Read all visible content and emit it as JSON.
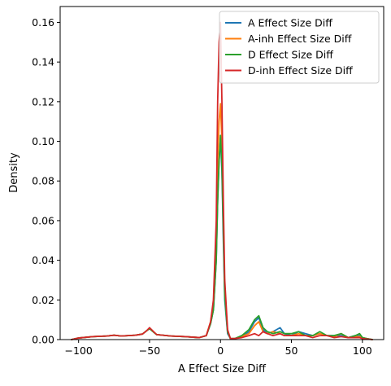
{
  "chart_data": {
    "type": "line",
    "xlabel": "A Effect Size Diff",
    "ylabel": "Density",
    "xlim": [
      -113,
      115
    ],
    "ylim": [
      0,
      0.168
    ],
    "xticks": [
      -100,
      -50,
      0,
      50,
      100
    ],
    "xtick_labels": [
      "−100",
      "−50",
      "0",
      "50",
      "100"
    ],
    "yticks": [
      0,
      0.02,
      0.04,
      0.06,
      0.08,
      0.1,
      0.12,
      0.14,
      0.16
    ],
    "ytick_labels": [
      "0.00",
      "0.02",
      "0.04",
      "0.06",
      "0.08",
      "0.10",
      "0.12",
      "0.14",
      "0.16"
    ],
    "grid": false,
    "legend_position": "top-right",
    "series": [
      {
        "name": "A Effect Size Diff",
        "color": "#1f77b4",
        "x": [
          -105,
          -100,
          -90,
          -80,
          -75,
          -70,
          -60,
          -55,
          -52,
          -50,
          -45,
          -35,
          -25,
          -15,
          -10,
          -7,
          -5,
          -3,
          -2,
          -1,
          0,
          1,
          2,
          3,
          5,
          7,
          10,
          15,
          20,
          24,
          27,
          30,
          33,
          37,
          42,
          45,
          50,
          55,
          60,
          65,
          70,
          75,
          80,
          85,
          90,
          95,
          98,
          100,
          103,
          107
        ],
        "y": [
          0,
          0.0008,
          0.0015,
          0.0018,
          0.0022,
          0.0018,
          0.0022,
          0.0028,
          0.0045,
          0.0055,
          0.0025,
          0.0018,
          0.0015,
          0.001,
          0.002,
          0.008,
          0.015,
          0.04,
          0.07,
          0.09,
          0.102,
          0.085,
          0.05,
          0.02,
          0.003,
          0.0005,
          0.0005,
          0.0015,
          0.004,
          0.009,
          0.011,
          0.005,
          0.003,
          0.004,
          0.006,
          0.003,
          0.002,
          0.004,
          0.003,
          0.002,
          0.003,
          0.002,
          0.002,
          0.002,
          0.001,
          0.002,
          0.002,
          0.001,
          0.0005,
          0
        ]
      },
      {
        "name": "A-inh Effect Size Diff",
        "color": "#ff7f0e",
        "x": [
          -105,
          -100,
          -90,
          -80,
          -75,
          -70,
          -60,
          -55,
          -52,
          -50,
          -45,
          -35,
          -25,
          -15,
          -10,
          -7,
          -5,
          -3,
          -2,
          -1,
          0,
          1,
          2,
          3,
          5,
          7,
          10,
          15,
          20,
          24,
          27,
          30,
          33,
          37,
          42,
          45,
          50,
          55,
          60,
          65,
          70,
          75,
          80,
          85,
          90,
          95,
          98,
          100,
          103,
          107
        ],
        "y": [
          0,
          0.0008,
          0.0015,
          0.0018,
          0.0022,
          0.0018,
          0.0022,
          0.0028,
          0.0045,
          0.0055,
          0.0025,
          0.0018,
          0.0015,
          0.001,
          0.002,
          0.009,
          0.018,
          0.05,
          0.09,
          0.11,
          0.119,
          0.1,
          0.06,
          0.025,
          0.004,
          0.0005,
          0.0005,
          0.0015,
          0.003,
          0.007,
          0.009,
          0.004,
          0.003,
          0.004,
          0.003,
          0.002,
          0.002,
          0.003,
          0.002,
          0.002,
          0.003,
          0.002,
          0.0015,
          0.003,
          0.001,
          0.0015,
          0.0015,
          0.001,
          0.0005,
          0
        ]
      },
      {
        "name": "D Effect Size Diff",
        "color": "#2ca02c",
        "x": [
          -105,
          -100,
          -90,
          -80,
          -75,
          -70,
          -60,
          -55,
          -52,
          -50,
          -45,
          -35,
          -25,
          -15,
          -10,
          -7,
          -5,
          -3,
          -2,
          -1,
          0,
          1,
          2,
          3,
          5,
          7,
          10,
          15,
          20,
          24,
          27,
          30,
          33,
          37,
          42,
          45,
          50,
          55,
          60,
          65,
          70,
          75,
          80,
          85,
          90,
          95,
          98,
          100,
          103,
          107
        ],
        "y": [
          0,
          0.0008,
          0.0015,
          0.0018,
          0.0022,
          0.0018,
          0.0022,
          0.0028,
          0.0045,
          0.0055,
          0.0025,
          0.0018,
          0.0015,
          0.001,
          0.002,
          0.008,
          0.015,
          0.04,
          0.07,
          0.09,
          0.103,
          0.088,
          0.055,
          0.022,
          0.004,
          0.0005,
          0.0005,
          0.002,
          0.005,
          0.01,
          0.012,
          0.006,
          0.004,
          0.003,
          0.004,
          0.003,
          0.003,
          0.004,
          0.002,
          0.002,
          0.004,
          0.002,
          0.002,
          0.003,
          0.001,
          0.002,
          0.003,
          0.001,
          0.0005,
          0
        ]
      },
      {
        "name": "D-inh Effect Size Diff",
        "color": "#d62728",
        "x": [
          -105,
          -100,
          -90,
          -80,
          -75,
          -70,
          -60,
          -55,
          -52,
          -50,
          -45,
          -35,
          -25,
          -15,
          -10,
          -7,
          -5,
          -3,
          -2,
          -1,
          0,
          1,
          2,
          3,
          5,
          7,
          10,
          15,
          20,
          24,
          27,
          30,
          33,
          37,
          42,
          45,
          50,
          55,
          60,
          65,
          70,
          75,
          80,
          85,
          90,
          95,
          98,
          100,
          103,
          107
        ],
        "y": [
          0,
          0.0008,
          0.0015,
          0.0018,
          0.0022,
          0.0018,
          0.0022,
          0.0028,
          0.0045,
          0.006,
          0.0025,
          0.0018,
          0.0015,
          0.001,
          0.002,
          0.009,
          0.02,
          0.06,
          0.12,
          0.15,
          0.16,
          0.12,
          0.07,
          0.03,
          0.005,
          0.0005,
          0.0005,
          0.001,
          0.002,
          0.003,
          0.002,
          0.004,
          0.003,
          0.002,
          0.003,
          0.002,
          0.002,
          0.002,
          0.002,
          0.001,
          0.002,
          0.002,
          0.001,
          0.0015,
          0.001,
          0.001,
          0.001,
          0.0005,
          0.0003,
          0
        ]
      }
    ]
  }
}
